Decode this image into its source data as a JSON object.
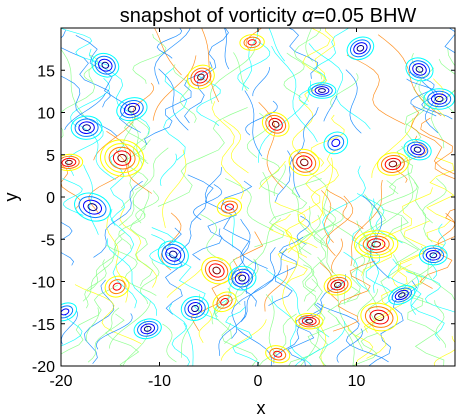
{
  "chart_data": {
    "type": "contour",
    "title_prefix": "snapshot of vorticity ",
    "title_symbol": "α",
    "title_suffix": "=0.05  BHW",
    "xlabel": "x",
    "ylabel": "y",
    "xlim": [
      -20,
      20
    ],
    "ylim": [
      -20,
      20
    ],
    "x_ticks": [
      -20,
      -10,
      0,
      10
    ],
    "y_ticks": [
      -20,
      -15,
      -10,
      -5,
      0,
      5,
      10,
      15
    ],
    "x_tick_labels": [
      "-20",
      "-10",
      "0",
      "10"
    ],
    "y_tick_labels": [
      "-20",
      "-15",
      "-10",
      "-5",
      "0",
      "5",
      "10",
      "15"
    ],
    "colormap": [
      "#00008f",
      "#0000ff",
      "#0080ff",
      "#00ffff",
      "#80ff80",
      "#ffff00",
      "#ff8000",
      "#ff0000",
      "#800000"
    ],
    "vortices": [
      {
        "x": -13.8,
        "y": 4.6,
        "sign": 1,
        "strength": 1.0
      },
      {
        "x": -16.8,
        "y": -1.2,
        "sign": -1,
        "strength": 0.8
      },
      {
        "x": -17.4,
        "y": 8.2,
        "sign": -1,
        "strength": 0.6
      },
      {
        "x": -12.8,
        "y": 10.4,
        "sign": -1,
        "strength": 0.6
      },
      {
        "x": -15.5,
        "y": 15.6,
        "sign": -1,
        "strength": 0.5
      },
      {
        "x": -19.2,
        "y": 4.1,
        "sign": 1,
        "strength": 0.5
      },
      {
        "x": -11.2,
        "y": -15.6,
        "sign": -1,
        "strength": 0.5
      },
      {
        "x": -8.6,
        "y": -6.8,
        "sign": -1,
        "strength": 0.6
      },
      {
        "x": -6.4,
        "y": -13.2,
        "sign": -1,
        "strength": 0.5
      },
      {
        "x": -4.2,
        "y": -8.7,
        "sign": 1,
        "strength": 0.6
      },
      {
        "x": -3.4,
        "y": -12.4,
        "sign": 1,
        "strength": 0.4
      },
      {
        "x": -1.6,
        "y": -9.6,
        "sign": -1,
        "strength": 0.5
      },
      {
        "x": -5.8,
        "y": 14.2,
        "sign": 1,
        "strength": 0.5
      },
      {
        "x": -2.9,
        "y": -1.2,
        "sign": 1,
        "strength": 0.4
      },
      {
        "x": 1.8,
        "y": 8.6,
        "sign": 1,
        "strength": 0.5
      },
      {
        "x": 4.7,
        "y": 4.1,
        "sign": 1,
        "strength": 0.6
      },
      {
        "x": 6.5,
        "y": 12.6,
        "sign": -1,
        "strength": 0.5
      },
      {
        "x": 7.9,
        "y": 6.4,
        "sign": -1,
        "strength": 0.4
      },
      {
        "x": 8.1,
        "y": -10.4,
        "sign": 1,
        "strength": 0.5
      },
      {
        "x": 5.2,
        "y": -14.7,
        "sign": 1,
        "strength": 0.5
      },
      {
        "x": 2.0,
        "y": -18.6,
        "sign": 1,
        "strength": 0.4
      },
      {
        "x": 12.0,
        "y": -5.6,
        "sign": 1,
        "strength": 1.0
      },
      {
        "x": 12.3,
        "y": -14.2,
        "sign": 1,
        "strength": 0.8
      },
      {
        "x": 13.7,
        "y": 3.9,
        "sign": 1,
        "strength": 0.6
      },
      {
        "x": 14.6,
        "y": -11.6,
        "sign": -1,
        "strength": 0.5
      },
      {
        "x": 16.2,
        "y": 5.6,
        "sign": -1,
        "strength": 0.5
      },
      {
        "x": 17.8,
        "y": -6.9,
        "sign": -1,
        "strength": 0.5
      },
      {
        "x": 18.4,
        "y": 11.6,
        "sign": -1,
        "strength": 0.6
      },
      {
        "x": 16.4,
        "y": 15.1,
        "sign": -1,
        "strength": 0.5
      },
      {
        "x": 10.4,
        "y": 17.6,
        "sign": -1,
        "strength": 0.5
      },
      {
        "x": -0.6,
        "y": 18.3,
        "sign": 1,
        "strength": 0.4
      },
      {
        "x": -19.6,
        "y": -13.6,
        "sign": -1,
        "strength": 0.4
      },
      {
        "x": -14.3,
        "y": -10.6,
        "sign": 1,
        "strength": 0.4
      }
    ]
  }
}
